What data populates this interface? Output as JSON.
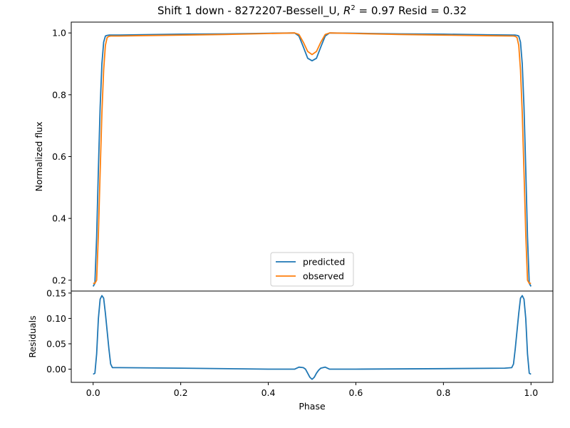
{
  "chart_data": {
    "type": "line",
    "title_prefix": "Shift 1 down - 8272207-Bessell_U, ",
    "title_r": "R",
    "title_sup": "2",
    "title_suffix": " = 0.97 Resid = 0.32",
    "colors": {
      "predicted": "#1f77b4",
      "observed": "#ff7f0e"
    },
    "legend": {
      "placement": "lower-center",
      "entries": [
        "predicted",
        "observed"
      ]
    },
    "xlabel": "Phase",
    "grid": false,
    "panels": [
      {
        "id": "flux",
        "ylabel": "Normalized flux",
        "xlim": [
          -0.05,
          1.05
        ],
        "ylim": [
          0.165,
          1.035
        ],
        "yticks": [
          "0.2",
          "0.4",
          "0.6",
          "0.8",
          "1.0"
        ],
        "series": [
          {
            "name": "predicted",
            "x": [
              0.0,
              0.004,
              0.008,
              0.012,
              0.016,
              0.02,
              0.024,
              0.028,
              0.032,
              0.036,
              0.04,
              0.06,
              0.1,
              0.2,
              0.3,
              0.4,
              0.46,
              0.47,
              0.48,
              0.49,
              0.5,
              0.51,
              0.52,
              0.53,
              0.54,
              0.6,
              0.7,
              0.8,
              0.9,
              0.96,
              0.964,
              0.968,
              0.972,
              0.976,
              0.98,
              0.984,
              0.988,
              0.992,
              0.996,
              1.0
            ],
            "y": [
              0.18,
              0.19,
              0.34,
              0.56,
              0.76,
              0.9,
              0.97,
              0.99,
              0.992,
              0.993,
              0.993,
              0.993,
              0.994,
              0.996,
              0.997,
              0.999,
              1.0,
              0.99,
              0.955,
              0.918,
              0.91,
              0.918,
              0.955,
              0.99,
              1.0,
              0.999,
              0.997,
              0.996,
              0.994,
              0.993,
              0.993,
              0.992,
              0.99,
              0.97,
              0.9,
              0.76,
              0.56,
              0.34,
              0.19,
              0.18
            ]
          },
          {
            "name": "observed",
            "x": [
              0.0,
              0.004,
              0.008,
              0.012,
              0.016,
              0.02,
              0.024,
              0.028,
              0.032,
              0.036,
              0.04,
              0.06,
              0.1,
              0.2,
              0.3,
              0.4,
              0.46,
              0.47,
              0.48,
              0.49,
              0.5,
              0.51,
              0.52,
              0.53,
              0.54,
              0.6,
              0.7,
              0.8,
              0.9,
              0.96,
              0.964,
              0.968,
              0.972,
              0.976,
              0.98,
              0.984,
              0.988,
              0.992,
              0.996,
              1.0
            ],
            "y": [
              0.19,
              0.19,
              0.2,
              0.35,
              0.55,
              0.74,
              0.88,
              0.96,
              0.985,
              0.989,
              0.99,
              0.99,
              0.991,
              0.993,
              0.995,
              0.998,
              1.0,
              0.995,
              0.97,
              0.94,
              0.93,
              0.94,
              0.97,
              0.995,
              1.0,
              0.998,
              0.995,
              0.993,
              0.991,
              0.99,
              0.989,
              0.985,
              0.96,
              0.88,
              0.74,
              0.55,
              0.35,
              0.2,
              0.19,
              0.19
            ]
          }
        ]
      },
      {
        "id": "residuals",
        "ylabel": "Residuals",
        "xlim": [
          -0.05,
          1.05
        ],
        "ylim": [
          -0.026,
          0.154
        ],
        "yticks": [
          "0.00",
          "0.05",
          "0.10",
          "0.15"
        ],
        "xticks": [
          "0.0",
          "0.2",
          "0.4",
          "0.6",
          "0.8",
          "1.0"
        ],
        "series": [
          {
            "name": "residuals",
            "x": [
              0.0,
              0.004,
              0.008,
              0.012,
              0.016,
              0.02,
              0.024,
              0.028,
              0.032,
              0.036,
              0.04,
              0.044,
              0.06,
              0.2,
              0.4,
              0.46,
              0.47,
              0.48,
              0.485,
              0.49,
              0.495,
              0.5,
              0.505,
              0.51,
              0.515,
              0.52,
              0.53,
              0.54,
              0.6,
              0.8,
              0.94,
              0.956,
              0.96,
              0.964,
              0.968,
              0.972,
              0.976,
              0.98,
              0.984,
              0.988,
              0.992,
              0.996,
              1.0
            ],
            "y": [
              -0.01,
              -0.008,
              0.03,
              0.1,
              0.138,
              0.145,
              0.14,
              0.11,
              0.075,
              0.04,
              0.01,
              0.003,
              0.003,
              0.002,
              0.0,
              0.0,
              0.004,
              0.003,
              0.0,
              -0.008,
              -0.016,
              -0.02,
              -0.016,
              -0.008,
              -0.002,
              0.002,
              0.004,
              0.0,
              0.0,
              0.001,
              0.002,
              0.003,
              0.01,
              0.04,
              0.075,
              0.11,
              0.14,
              0.145,
              0.138,
              0.1,
              0.03,
              -0.008,
              -0.01
            ]
          }
        ]
      }
    ]
  }
}
